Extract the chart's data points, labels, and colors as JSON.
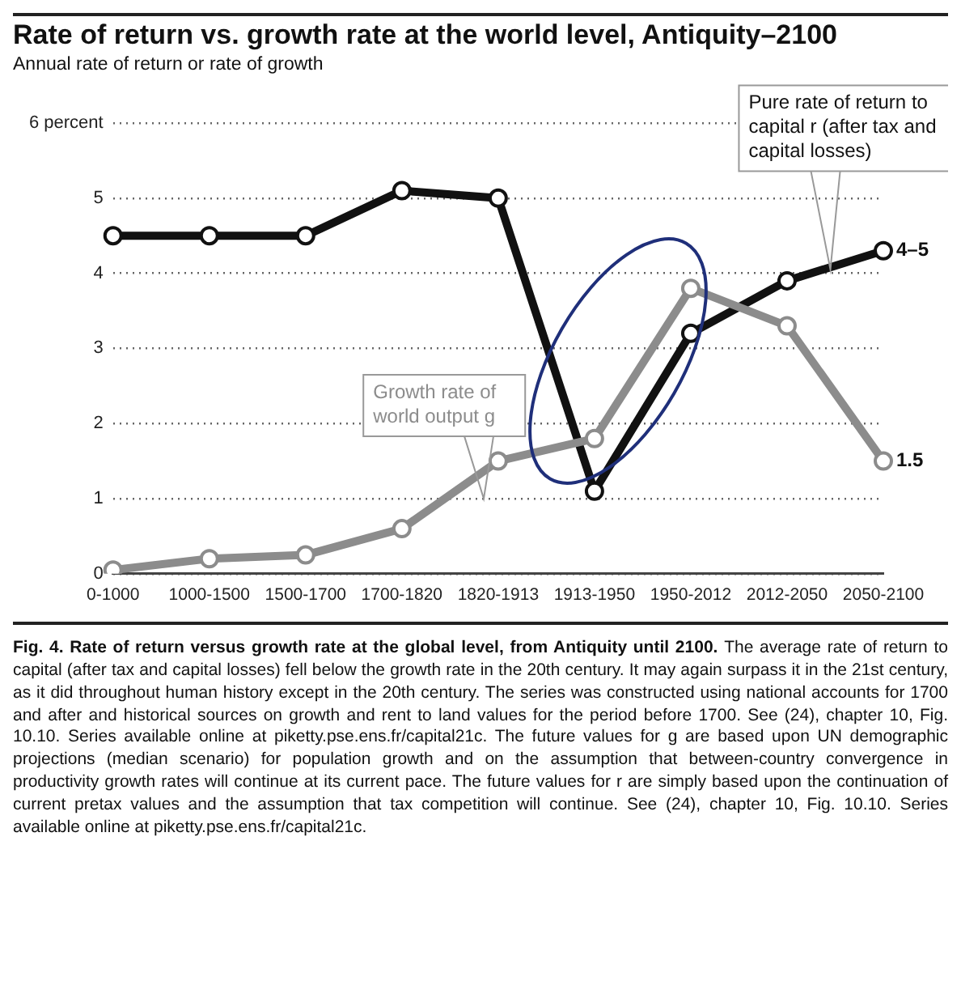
{
  "chart_data": {
    "type": "line",
    "title": "Rate of return vs. growth rate at the world level, Antiquity–2100",
    "ylabel": "Annual rate of return or rate of growth",
    "categories": [
      "0-1000",
      "1000-1500",
      "1500-1700",
      "1700-1820",
      "1820-1913",
      "1913-1950",
      "1950-2012",
      "2012-2050",
      "2050-2100"
    ],
    "series": [
      {
        "name": "Pure rate of return to capital r (after tax and capital losses)",
        "color": "#111111",
        "values": [
          4.5,
          4.5,
          4.5,
          5.1,
          5.0,
          1.1,
          3.2,
          3.9,
          4.3
        ]
      },
      {
        "name": "Growth rate of world output g",
        "color": "#8c8c8c",
        "values": [
          0.05,
          0.2,
          0.25,
          0.6,
          1.5,
          1.8,
          3.8,
          3.3,
          1.5
        ]
      }
    ],
    "ylim": [
      0,
      6
    ],
    "yticks": [
      0,
      1,
      2,
      3,
      4,
      5,
      {
        "value": 6,
        "label": "6 percent"
      }
    ],
    "grid": "y",
    "marker": "circle",
    "legend": false,
    "annotations": [
      {
        "text": "4–5",
        "x": "2050-2100",
        "y": 4.3
      },
      {
        "text": "1.5",
        "x": "2050-2100",
        "y": 1.5
      },
      "Fig. 4. Rate of return versus growth rate at the global level, from Antiquity until 2100.",
      "The average rate of return to capital (after tax and capital losses) fell below the growth rate in the 20th century. It may again surpass it in the 21st century, as it did throughout human history except in the 20th century. The series was constructed using national accounts for 1700 and after and historical sources on growth and rent to land values for the period before 1700. See (24), chapter 10, Fig. 10.10. Series available online at piketty.pse.ens.fr/capital21c. The future values for g are based upon UN demographic projections (median scenario) for population growth and on the assumption that between-country convergence in productivity growth rates will continue at its current pace. The future values for r are simply based upon the continuation of current pretax values and the assumption that tax competition will continue. See (24), chapter 10, Fig. 10.10. Series available online at piketty.pse.ens.fr/capital21c."
    ]
  }
}
